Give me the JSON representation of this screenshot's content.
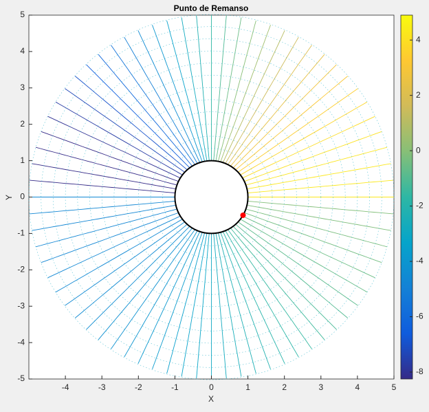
{
  "chart_data": {
    "type": "flow",
    "title": "Punto de Remanso",
    "x_label": "X",
    "y_label": "Y",
    "xlim": [
      -5,
      5
    ],
    "ylim": [
      -5,
      5
    ],
    "xticks": [
      -4,
      -3,
      -2,
      -1,
      0,
      1,
      2,
      3,
      4,
      5
    ],
    "yticks": [
      -5,
      -4,
      -3,
      -2,
      -1,
      0,
      1,
      2,
      3,
      4,
      5
    ],
    "cylinder": {
      "radius": 1,
      "color": "#000000"
    },
    "stagnation_point": {
      "x": [
        0.866
      ],
      "y": [
        -0.5
      ],
      "color": "#ff0000"
    },
    "colorbar": {
      "clim": [
        -8.25,
        4.9
      ],
      "ticks": [
        -8,
        -6,
        -4,
        -2,
        0,
        2,
        4
      ],
      "colormap": [
        "#352a87",
        "#0f5cdd",
        "#1481d6",
        "#06a4ca",
        "#2eb7a4",
        "#87bf77",
        "#d1bb59",
        "#fec832",
        "#f9fb0e"
      ]
    }
  }
}
